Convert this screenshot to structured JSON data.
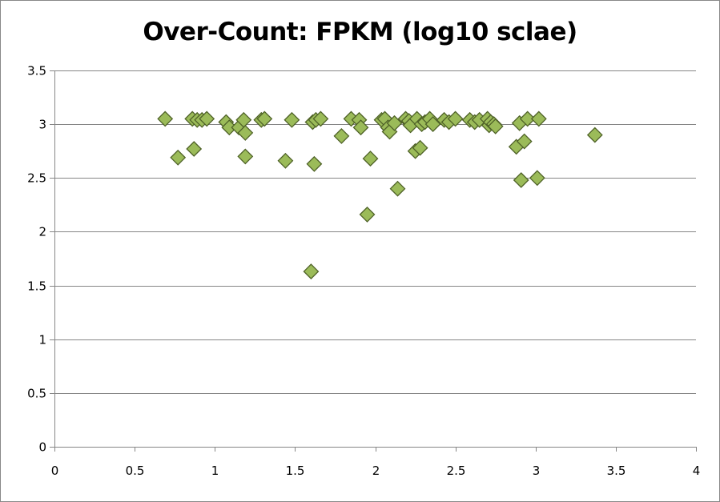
{
  "chart_data": {
    "type": "scatter",
    "title": "Over-Count: FPKM (log10 sclae)",
    "xlabel": "",
    "ylabel": "",
    "xlim": [
      0,
      4
    ],
    "ylim": [
      0,
      3.5
    ],
    "x_ticks": [
      "0",
      "0.5",
      "1",
      "1.5",
      "2",
      "2.5",
      "3",
      "3.5",
      "4"
    ],
    "y_ticks": [
      "0",
      "0.5",
      "1",
      "1.5",
      "2",
      "2.5",
      "3",
      "3.5"
    ],
    "grid": "horizontal",
    "legend": "none",
    "marker": "diamond",
    "marker_color": "#9bbb59",
    "marker_edge_color": "#4f6228",
    "gridline_color": "#868686",
    "series": [
      {
        "x": [
          0.69,
          0.77,
          0.86,
          0.87,
          0.89,
          0.92,
          0.95,
          1.07,
          1.09,
          1.15,
          1.18,
          1.19,
          1.19,
          1.29,
          1.31,
          1.44,
          1.48,
          1.6,
          1.61,
          1.62,
          1.63,
          1.66,
          1.79,
          1.85,
          1.9,
          1.91,
          1.95,
          1.97,
          2.04,
          2.06,
          2.08,
          2.09,
          2.12,
          2.14,
          2.19,
          2.21,
          2.22,
          2.25,
          2.26,
          2.28,
          2.29,
          2.31,
          2.34,
          2.36,
          2.43,
          2.46,
          2.5,
          2.59,
          2.62,
          2.65,
          2.7,
          2.71,
          2.72,
          2.74,
          2.75,
          2.88,
          2.9,
          2.91,
          2.93,
          2.95,
          3.01,
          3.02,
          3.37
        ],
        "y": [
          3.05,
          2.69,
          3.05,
          2.77,
          3.04,
          3.04,
          3.05,
          3.02,
          2.97,
          2.97,
          3.04,
          2.7,
          2.92,
          3.04,
          3.05,
          2.66,
          3.04,
          1.63,
          3.02,
          2.63,
          3.04,
          3.05,
          2.89,
          3.05,
          3.04,
          2.97,
          2.16,
          2.68,
          3.04,
          3.05,
          2.97,
          2.93,
          3.01,
          2.4,
          3.05,
          3.03,
          2.99,
          2.75,
          3.05,
          2.78,
          3.0,
          3.02,
          3.05,
          3.0,
          3.04,
          3.02,
          3.05,
          3.04,
          3.02,
          3.04,
          3.05,
          2.99,
          3.02,
          3.0,
          2.98,
          2.79,
          3.01,
          2.48,
          2.84,
          3.05,
          2.5,
          3.05,
          2.9
        ]
      }
    ]
  }
}
